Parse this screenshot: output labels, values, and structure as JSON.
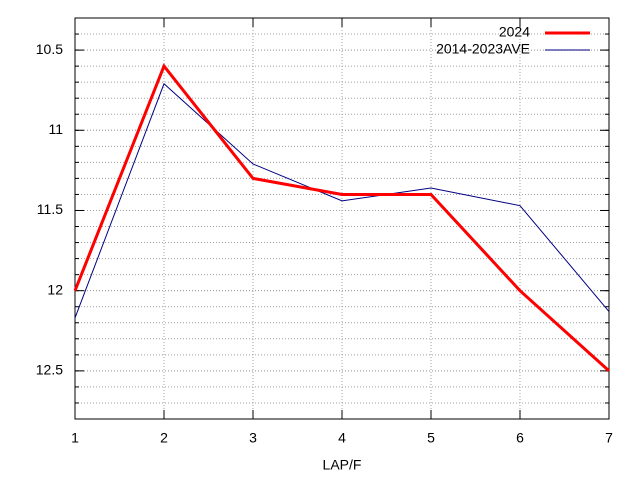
{
  "chart_data": {
    "type": "line",
    "xlabel": "LAP/F",
    "x": [
      1,
      2,
      3,
      4,
      5,
      6,
      7
    ],
    "series": [
      {
        "name": "2024",
        "color": "#ff0000",
        "width": 3,
        "values": [
          12.0,
          10.6,
          11.3,
          11.4,
          11.4,
          12.0,
          12.5
        ]
      },
      {
        "name": "2014-2023AVE",
        "color": "#000080",
        "width": 1,
        "values": [
          12.17,
          10.71,
          11.21,
          11.44,
          11.36,
          11.47,
          12.13
        ]
      }
    ],
    "xlim": [
      1,
      7
    ],
    "xticks": [
      1,
      2,
      3,
      4,
      5,
      6,
      7
    ],
    "ylim": [
      12.8,
      10.3
    ],
    "yticks": [
      10.5,
      11,
      11.5,
      12,
      12.5
    ],
    "y_minor_intervals": 5,
    "grid": true,
    "legend": "top-right"
  }
}
